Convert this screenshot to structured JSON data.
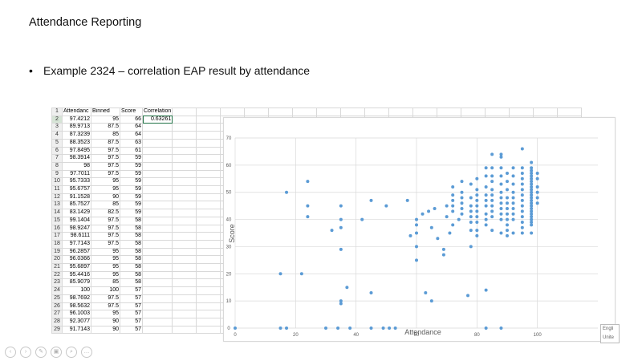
{
  "slide": {
    "title": "Attendance Reporting",
    "bullet": "Example 2324 – correlation EAP result by attendance"
  },
  "sheet": {
    "headers": [
      "Attendanc",
      "Binned",
      "Score",
      "Correlation"
    ],
    "correlation": "0.63261",
    "rows": [
      [
        "97.4212",
        "95",
        "66"
      ],
      [
        "89.9713",
        "87.5",
        "64"
      ],
      [
        "87.3239",
        "85",
        "64"
      ],
      [
        "88.3523",
        "87.5",
        "63"
      ],
      [
        "97.8495",
        "97.5",
        "61"
      ],
      [
        "98.3914",
        "97.5",
        "59"
      ],
      [
        "98",
        "97.5",
        "59"
      ],
      [
        "97.7011",
        "97.5",
        "59"
      ],
      [
        "95.7333",
        "95",
        "59"
      ],
      [
        "95.6757",
        "95",
        "59"
      ],
      [
        "91.1528",
        "90",
        "59"
      ],
      [
        "85.7527",
        "85",
        "59"
      ],
      [
        "83.1429",
        "82.5",
        "59"
      ],
      [
        "99.1404",
        "97.5",
        "58"
      ],
      [
        "98.9247",
        "97.5",
        "58"
      ],
      [
        "98.6111",
        "97.5",
        "58"
      ],
      [
        "97.7143",
        "97.5",
        "58"
      ],
      [
        "96.2857",
        "95",
        "58"
      ],
      [
        "96.0366",
        "95",
        "58"
      ],
      [
        "95.6897",
        "95",
        "58"
      ],
      [
        "95.4416",
        "95",
        "58"
      ],
      [
        "85.9079",
        "85",
        "58"
      ],
      [
        "100",
        "100",
        "57"
      ],
      [
        "98.7692",
        "97.5",
        "57"
      ],
      [
        "98.5632",
        "97.5",
        "57"
      ],
      [
        "96.1003",
        "95",
        "57"
      ],
      [
        "92.3077",
        "90",
        "57"
      ],
      [
        "91.7143",
        "90",
        "57"
      ]
    ]
  },
  "language_box": "Engli Unite",
  "toolbar": {
    "icons": [
      "back-icon",
      "forward-icon",
      "pen-icon",
      "slides-icon",
      "zoom-icon",
      "more-icon"
    ],
    "glyphs": [
      "‹",
      "›",
      "✎",
      "▣",
      "⌕",
      "…"
    ]
  },
  "colors": {
    "point": "#5b9bd5",
    "grid": "#d9d9d9",
    "axis_text": "#595959"
  },
  "chart_data": {
    "type": "scatter",
    "xlabel": "Attendance",
    "ylabel": "Score",
    "xlim": [
      0,
      120
    ],
    "ylim": [
      0,
      70
    ],
    "xticks": [
      0,
      20,
      40,
      60,
      80,
      100
    ],
    "yticks": [
      0,
      10,
      20,
      30,
      40,
      50,
      60,
      70
    ],
    "grid": true,
    "points": [
      [
        0,
        0
      ],
      [
        15,
        0
      ],
      [
        17,
        0
      ],
      [
        30,
        0
      ],
      [
        34,
        0
      ],
      [
        38,
        0
      ],
      [
        45,
        0
      ],
      [
        49,
        0
      ],
      [
        51,
        0
      ],
      [
        53,
        0
      ],
      [
        83,
        0
      ],
      [
        88,
        0
      ],
      [
        15,
        20
      ],
      [
        17,
        50
      ],
      [
        22,
        20
      ],
      [
        24,
        54
      ],
      [
        24,
        45
      ],
      [
        24,
        41
      ],
      [
        32,
        36
      ],
      [
        35,
        37
      ],
      [
        35,
        29
      ],
      [
        35,
        45
      ],
      [
        35,
        40
      ],
      [
        35,
        10
      ],
      [
        35,
        9
      ],
      [
        37,
        15
      ],
      [
        42,
        40
      ],
      [
        45,
        13
      ],
      [
        45,
        47
      ],
      [
        50,
        45
      ],
      [
        57,
        47
      ],
      [
        58,
        34
      ],
      [
        60,
        40
      ],
      [
        60,
        38
      ],
      [
        60,
        35
      ],
      [
        60,
        30
      ],
      [
        60,
        25
      ],
      [
        62,
        42
      ],
      [
        63,
        13
      ],
      [
        64,
        43
      ],
      [
        65,
        37
      ],
      [
        65,
        10
      ],
      [
        66,
        44
      ],
      [
        67,
        33
      ],
      [
        69,
        27
      ],
      [
        69,
        29
      ],
      [
        70,
        41
      ],
      [
        70,
        45
      ],
      [
        71,
        35
      ],
      [
        72,
        38
      ],
      [
        72,
        52
      ],
      [
        72,
        49
      ],
      [
        72,
        47
      ],
      [
        72,
        45
      ],
      [
        72,
        43
      ],
      [
        74,
        40
      ],
      [
        75,
        54
      ],
      [
        75,
        50
      ],
      [
        75,
        48
      ],
      [
        75,
        46
      ],
      [
        75,
        44
      ],
      [
        75,
        42
      ],
      [
        77,
        12
      ],
      [
        78,
        53
      ],
      [
        78,
        48
      ],
      [
        78,
        45
      ],
      [
        78,
        43
      ],
      [
        78,
        41
      ],
      [
        78,
        39
      ],
      [
        78,
        36
      ],
      [
        78,
        30
      ],
      [
        80,
        55
      ],
      [
        80,
        51
      ],
      [
        80,
        49
      ],
      [
        80,
        47
      ],
      [
        80,
        45
      ],
      [
        80,
        43
      ],
      [
        80,
        41
      ],
      [
        80,
        39
      ],
      [
        80,
        36
      ],
      [
        80,
        34
      ],
      [
        83,
        59
      ],
      [
        83,
        56
      ],
      [
        83,
        52
      ],
      [
        83,
        49
      ],
      [
        83,
        47
      ],
      [
        83,
        45
      ],
      [
        83,
        42
      ],
      [
        83,
        40
      ],
      [
        83,
        38
      ],
      [
        83,
        14
      ],
      [
        85,
        64
      ],
      [
        85,
        59
      ],
      [
        85,
        56
      ],
      [
        85,
        54
      ],
      [
        85,
        51
      ],
      [
        85,
        49
      ],
      [
        85,
        47
      ],
      [
        85,
        45
      ],
      [
        85,
        43
      ],
      [
        85,
        41
      ],
      [
        85,
        36
      ],
      [
        88,
        64
      ],
      [
        88,
        63
      ],
      [
        88,
        59
      ],
      [
        88,
        56
      ],
      [
        88,
        53
      ],
      [
        88,
        50
      ],
      [
        88,
        48
      ],
      [
        88,
        46
      ],
      [
        88,
        44
      ],
      [
        88,
        42
      ],
      [
        88,
        40
      ],
      [
        88,
        35
      ],
      [
        90,
        57
      ],
      [
        90,
        54
      ],
      [
        90,
        51
      ],
      [
        90,
        48
      ],
      [
        90,
        46
      ],
      [
        90,
        44
      ],
      [
        90,
        42
      ],
      [
        90,
        40
      ],
      [
        90,
        38
      ],
      [
        90,
        36
      ],
      [
        90,
        34
      ],
      [
        92,
        59
      ],
      [
        92,
        56
      ],
      [
        92,
        53
      ],
      [
        92,
        50
      ],
      [
        92,
        48
      ],
      [
        92,
        46
      ],
      [
        92,
        44
      ],
      [
        92,
        42
      ],
      [
        92,
        40
      ],
      [
        92,
        35
      ],
      [
        95,
        66
      ],
      [
        95,
        59
      ],
      [
        95,
        57
      ],
      [
        95,
        55
      ],
      [
        95,
        53
      ],
      [
        95,
        51
      ],
      [
        95,
        49
      ],
      [
        95,
        47
      ],
      [
        95,
        45
      ],
      [
        95,
        43
      ],
      [
        95,
        41
      ],
      [
        95,
        39
      ],
      [
        95,
        37
      ],
      [
        95,
        35
      ],
      [
        98,
        61
      ],
      [
        98,
        59
      ],
      [
        98,
        58
      ],
      [
        98,
        57
      ],
      [
        98,
        56
      ],
      [
        98,
        55
      ],
      [
        98,
        54
      ],
      [
        98,
        53
      ],
      [
        98,
        52
      ],
      [
        98,
        51
      ],
      [
        98,
        50
      ],
      [
        98,
        49
      ],
      [
        98,
        48
      ],
      [
        98,
        47
      ],
      [
        98,
        46
      ],
      [
        98,
        45
      ],
      [
        98,
        44
      ],
      [
        98,
        43
      ],
      [
        98,
        42
      ],
      [
        98,
        41
      ],
      [
        98,
        40
      ],
      [
        98,
        39
      ],
      [
        98,
        38
      ],
      [
        98,
        35
      ],
      [
        100,
        57
      ],
      [
        100,
        55
      ],
      [
        100,
        52
      ],
      [
        100,
        50
      ],
      [
        100,
        48
      ],
      [
        100,
        46
      ]
    ]
  }
}
